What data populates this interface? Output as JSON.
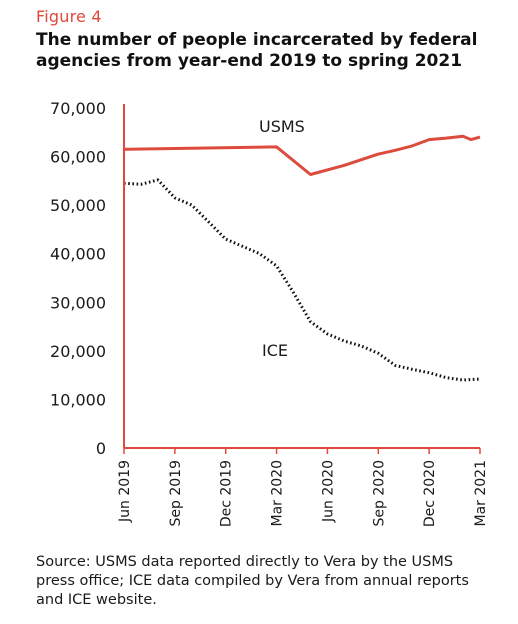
{
  "figure_label": "Figure 4",
  "title": "The number of people incarcerated by federal agencies from year-end 2019 to spring 2021",
  "source_note": "Source: USMS data reported directly to Vera by the USMS press office; ICE data compiled by Vera from annual reports and ICE website.",
  "colors": {
    "usms": "#dd4b3c",
    "ice": "#111111",
    "axis": "#dd4b3c",
    "figure_label": "#e0483a"
  },
  "chart_data": {
    "type": "line",
    "title": "The number of people incarcerated by federal agencies from year-end 2019 to spring 2021",
    "xlabel": "",
    "ylabel": "",
    "ylim": [
      0,
      70000
    ],
    "yticks": [
      "0",
      "10,000",
      "20,000",
      "30,000",
      "40,000",
      "50,000",
      "60,000",
      "70,000"
    ],
    "xlim": [
      "2019-06",
      "2021-03"
    ],
    "xticks": [
      "Jun 2019",
      "Sep 2019",
      "Dec 2019",
      "Mar 2020",
      "Jun 2020",
      "Sep 2020",
      "Dec 2020",
      "Mar 2021"
    ],
    "grid": false,
    "series": [
      {
        "name": "USMS",
        "style": "solid",
        "x": [
          "2019-06",
          "2020-03",
          "2020-05",
          "2020-07",
          "2020-09",
          "2020-10",
          "2020-11",
          "2020-12",
          "2021-01",
          "2021-02",
          "2021-02-15",
          "2021-03"
        ],
        "values": [
          61500,
          62000,
          56300,
          58200,
          60500,
          61300,
          62200,
          63500,
          63800,
          64200,
          63500,
          64000
        ]
      },
      {
        "name": "ICE",
        "style": "dotted",
        "x": [
          "2019-06",
          "2019-07",
          "2019-08",
          "2019-09",
          "2019-10",
          "2019-11",
          "2019-12",
          "2020-01",
          "2020-02",
          "2020-03",
          "2020-04",
          "2020-05",
          "2020-06",
          "2020-07",
          "2020-08",
          "2020-09",
          "2020-10",
          "2020-11",
          "2020-12",
          "2021-01",
          "2021-02",
          "2021-03"
        ],
        "values": [
          54500,
          54300,
          55200,
          51500,
          50000,
          46500,
          43000,
          41500,
          40000,
          37500,
          32000,
          26000,
          23500,
          22000,
          21000,
          19500,
          17000,
          16200,
          15500,
          14500,
          14000,
          14200
        ]
      }
    ]
  }
}
